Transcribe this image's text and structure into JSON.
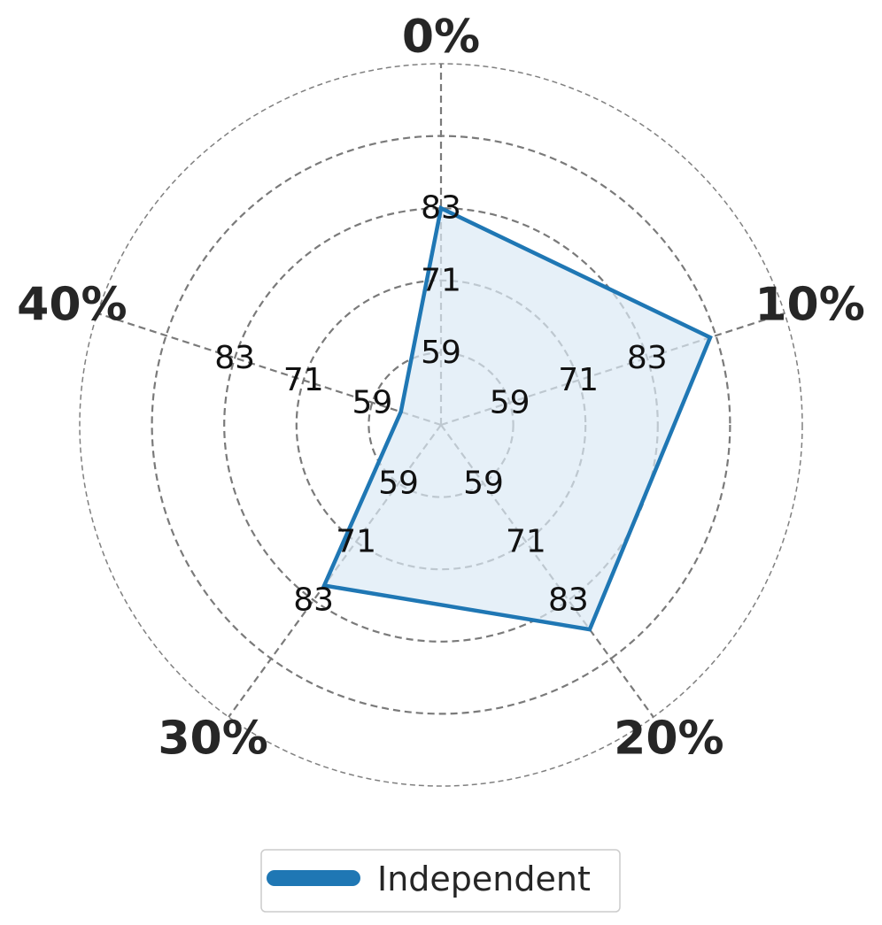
{
  "chart_data": {
    "type": "radar",
    "title": "",
    "categories": [
      "0%",
      "10%",
      "20%",
      "30%",
      "40%"
    ],
    "radial_ticks": [
      47,
      59,
      71,
      83,
      95
    ],
    "radial_tick_labels": [
      "59",
      "71",
      "83"
    ],
    "rlim": [
      47,
      107
    ],
    "grid": true,
    "legend_position": "bottom-center",
    "series": [
      {
        "name": "Independent",
        "values": [
          83,
          94,
          89,
          80,
          54
        ],
        "color": "#1f77b4",
        "fill_color": "#dce9f5"
      }
    ]
  }
}
